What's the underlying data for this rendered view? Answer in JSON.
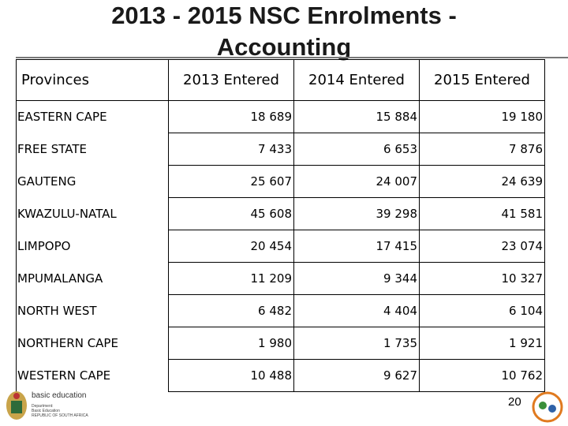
{
  "header": {
    "title": "2013 - 2015 NSC Enrolments - Accounting"
  },
  "table": {
    "columns": [
      "Provinces",
      "2013 Entered",
      "2014 Entered",
      "2015 Entered"
    ],
    "rows": [
      [
        "EASTERN CAPE",
        "18 689",
        "15 884",
        "19 180"
      ],
      [
        "FREE STATE",
        "7 433",
        "6 653",
        "7 876"
      ],
      [
        "GAUTENG",
        "25 607",
        "24 007",
        "24 639"
      ],
      [
        "KWAZULU-NATAL",
        "45 608",
        "39 298",
        "41 581"
      ],
      [
        "LIMPOPO",
        "20 454",
        "17 415",
        "23 074"
      ],
      [
        "MPUMALANGA",
        "11 209",
        "9 344",
        "10 327"
      ],
      [
        "NORTH WEST",
        "6 482",
        "4 404",
        "6 104"
      ],
      [
        "NORTHERN CAPE",
        "1 980",
        "1 735",
        "1 921"
      ],
      [
        "WESTERN CAPE",
        "10 488",
        "9 627",
        "10 762"
      ]
    ]
  },
  "footer": {
    "logo_title": "basic education",
    "logo_line1": "Department:",
    "logo_line2": "Basic Education",
    "logo_line3": "REPUBLIC OF SOUTH AFRICA",
    "page_number": "20"
  }
}
